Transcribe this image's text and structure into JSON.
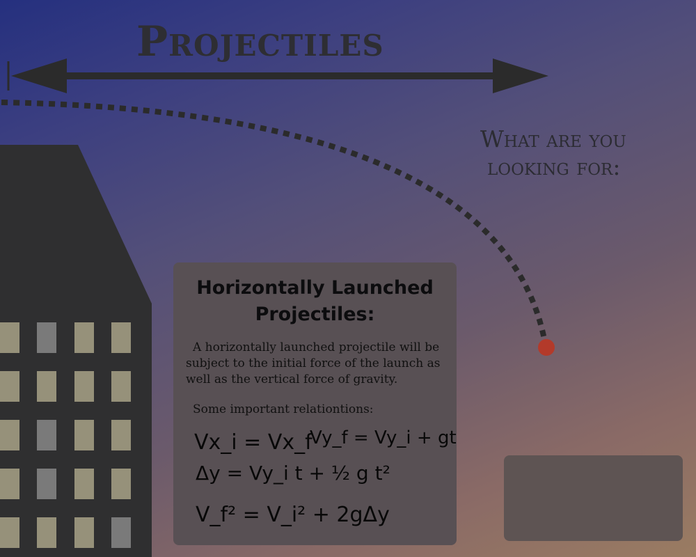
{
  "page": {
    "title": "Projectiles",
    "question_line1": "What are you",
    "question_line2": "looking for:"
  },
  "card": {
    "title_line1": "Horizontally Launched",
    "title_line2": "Projectiles:",
    "body": "A horizontally launched projectile will be subject to the initial force of the launch as well as the vertical force of gravity.",
    "relations_label": "Some important relationtions:",
    "equations": [
      "Vx_i = Vx_f",
      "Vy_f = Vy_i + gt",
      "Δy = Vy_i t + ½ g t²",
      "V_f² = V_i² + 2gΔy"
    ]
  },
  "search": {
    "value": ""
  },
  "colors": {
    "ball": "#b33a2a",
    "building": "#2f2f30",
    "window": "#96917a",
    "window_dark": "#7a7a7a",
    "card": "#585054"
  },
  "icons": [
    "double-arrow-icon",
    "trajectory-path-icon",
    "projectile-ball-icon",
    "building-icon"
  ]
}
